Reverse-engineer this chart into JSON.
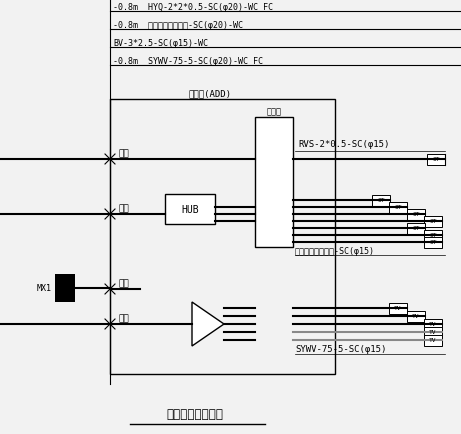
{
  "bg_color": "#f2f2f2",
  "line_color": "#000000",
  "title": "弱电配线箱接线图",
  "top_labels": [
    "-0.8m  HYQ-2*2*0.5-SC(φ20)-WC FC",
    "-0.8m  超五类四对对绞线-SC(φ20)-WC",
    "BV-3*2.5-SC(φ15)-WC",
    "-0.8m  SYWV-75-5-SC(φ20)-WC FC"
  ],
  "box_label": "配线筱(ADD)",
  "pxj_label": "配线架",
  "left_labels": [
    "电话",
    "数据",
    "电源",
    "电视"
  ],
  "hub_label": "HUB",
  "mx_label": "MX1",
  "right_top_label": "RVS-2*0.5-SC(φ15)",
  "right_mid_label": "超五类四对对绞线-SC(φ15)",
  "right_bot_label": "SYWV-75-5-SC(φ15)"
}
